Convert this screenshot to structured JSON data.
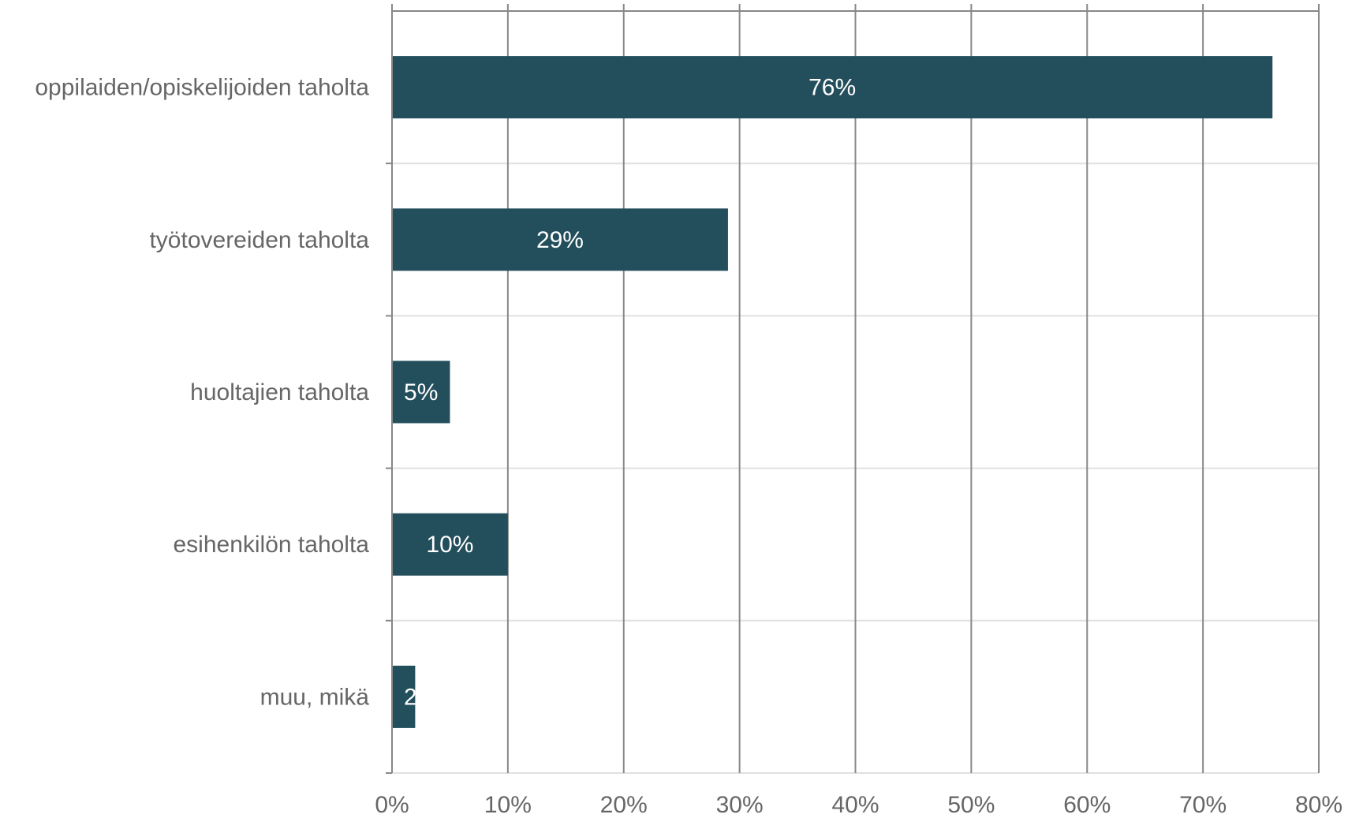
{
  "chart_data": {
    "type": "bar",
    "orientation": "horizontal",
    "categories": [
      "oppilaiden/opiskelijoiden taholta",
      "työtovereiden taholta",
      "huoltajien taholta",
      "esihenkilön taholta",
      "muu, mikä"
    ],
    "values": [
      76,
      29,
      5,
      10,
      2
    ],
    "data_labels": [
      "76%",
      "29%",
      "5%",
      "10%",
      "2"
    ],
    "xlim": [
      0,
      80
    ],
    "x_ticks": [
      0,
      10,
      20,
      30,
      40,
      50,
      60,
      70,
      80
    ],
    "x_tick_labels": [
      "0%",
      "10%",
      "20%",
      "30%",
      "40%",
      "50%",
      "60%",
      "70%",
      "80%"
    ],
    "grid": true,
    "legend": "none",
    "colors": {
      "bar": "#234e5c",
      "vertical_grid": "#888888",
      "horizontal_grid": "#e0e0e0",
      "axis": "#888888",
      "label_text": "#666666",
      "data_label_text": "#ffffff"
    }
  }
}
